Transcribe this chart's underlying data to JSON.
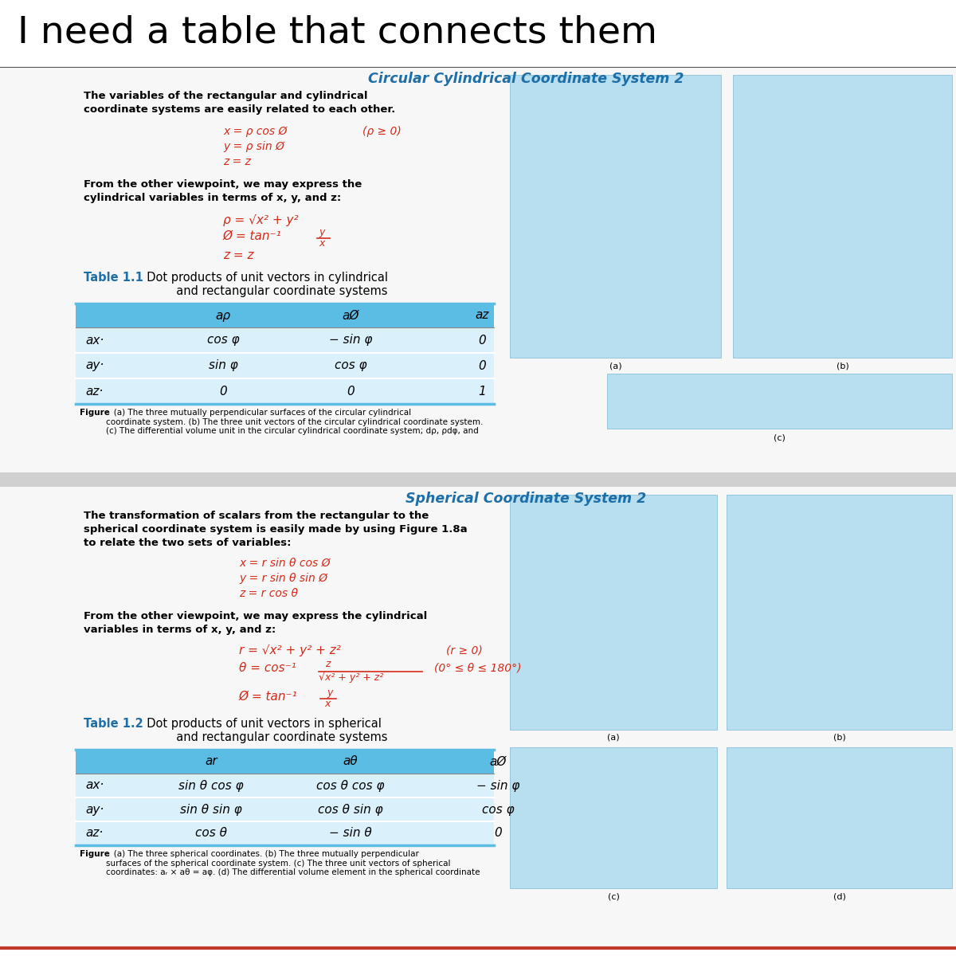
{
  "main_title": "I need a table that connects them",
  "section1_title": "Circular Cylindrical Coordinate System 2",
  "section1_body_line1": "The variables of the rectangular and cylindrical",
  "section1_body_line2": "coordinate systems are easily related to each other.",
  "section1_eq1a": "x = ρ cos Ø",
  "section1_eq1b": "(ρ ≥ 0)",
  "section1_eq2": "y = ρ sin Ø",
  "section1_eq3": "z = z",
  "section1_body2_line1": "From the other viewpoint, we may express the",
  "section1_body2_line2": "cylindrical variables in terms of x, y, and z:",
  "section1_eq4": "ρ = √x² + y²",
  "section1_eq5a": "Ø = tan⁻¹",
  "section1_eq5b": "y",
  "section1_eq5c": "x",
  "section1_eq6": "z = z",
  "table1_title_bold": "Table 1.1",
  "table1_title_rest": "  Dot products of unit vectors in cylindrical",
  "table1_title_rest2": "          and rectangular coordinate systems",
  "table1_col0": "",
  "table1_col1": "aρ",
  "table1_col2": "aØ",
  "table1_col3": "az",
  "table1_rows": [
    [
      "ax·",
      "cos φ",
      "− sin φ",
      "0"
    ],
    [
      "ay·",
      "sin φ",
      "cos φ",
      "0"
    ],
    [
      "az·",
      "0",
      "0",
      "1"
    ]
  ],
  "fig1_caption_bold": "Figure",
  "fig1_caption_rest": "   (a) The three mutually perpendicular surfaces of the circular cylindrical\ncoordinate system. (b) The three unit vectors of the circular cylindrical coordinate system.\n(c) The differential volume unit in the circular cylindrical coordinate system; dρ, ρdφ, and",
  "section_divider_label": "",
  "section2_title": "Spherical Coordinate System 2",
  "section2_body_line1": "The transformation of scalars from the rectangular to the",
  "section2_body_line2": "spherical coordinate system is easily made by using Figure 1.8a",
  "section2_body_line3": "to relate the two sets of variables:",
  "section2_eq1": "x = r sin θ cos Ø",
  "section2_eq2": "y = r sin θ sin Ø",
  "section2_eq3": "z = r cos θ",
  "section2_body2_line1": "From the other viewpoint, we may express the cylindrical",
  "section2_body2_line2": "variables in terms of x, y, and z:",
  "section2_eq4a": "r = √x² + y² + z²",
  "section2_eq4b": "(r ≥ 0)",
  "section2_eq5a": "θ = cos⁻¹",
  "section2_eq5b": "z",
  "section2_eq5c": "√x² + y² + z²",
  "section2_eq5d": "(0° ≤ θ ≤ 180°)",
  "section2_eq6a": "Ø = tan⁻¹",
  "section2_eq6b": "y",
  "section2_eq6c": "x",
  "table2_title_bold": "Table 1.2",
  "table2_title_rest": "  Dot products of unit vectors in spherical",
  "table2_title_rest2": "          and rectangular coordinate systems",
  "table2_col0": "",
  "table2_col1": "ar",
  "table2_col2": "aθ",
  "table2_col3": "aØ",
  "table2_rows": [
    [
      "ax·",
      "sin θ cos φ",
      "cos θ cos φ",
      "− sin φ"
    ],
    [
      "ay·",
      "sin θ sin φ",
      "cos θ sin φ",
      "cos φ"
    ],
    [
      "az·",
      "cos θ",
      "− sin θ",
      "0"
    ]
  ],
  "fig2_caption_bold": "Figure",
  "fig2_caption_rest": "   (a) The three spherical coordinates. (b) The three mutually perpendicular\nsurfaces of the spherical coordinate system. (c) The three unit vectors of spherical\ncoordinates: aᵣ × aθ = aφ. (d) The differential volume element in the spherical coordinate",
  "color_red": "#d42a1a",
  "color_blue_header": "#5bbce4",
  "color_light_blue_row": "#daf0fb",
  "color_table_title": "#1e6fa8",
  "color_section_title": "#1e6fa8",
  "color_sep_line": "#c0392b",
  "color_body_bold": "#000000",
  "color_img_fill": "#b8dff0",
  "color_img_edge": "#7ab8d4",
  "color_gray_sep": "#d0d0d0",
  "img1a_label": "(a)",
  "img1b_label": "(b)",
  "img1c_label": "(c)",
  "img2a_label": "(a)",
  "img2b_label": "(b)",
  "img2c_label": "(c)",
  "img2d_label": "(d)"
}
